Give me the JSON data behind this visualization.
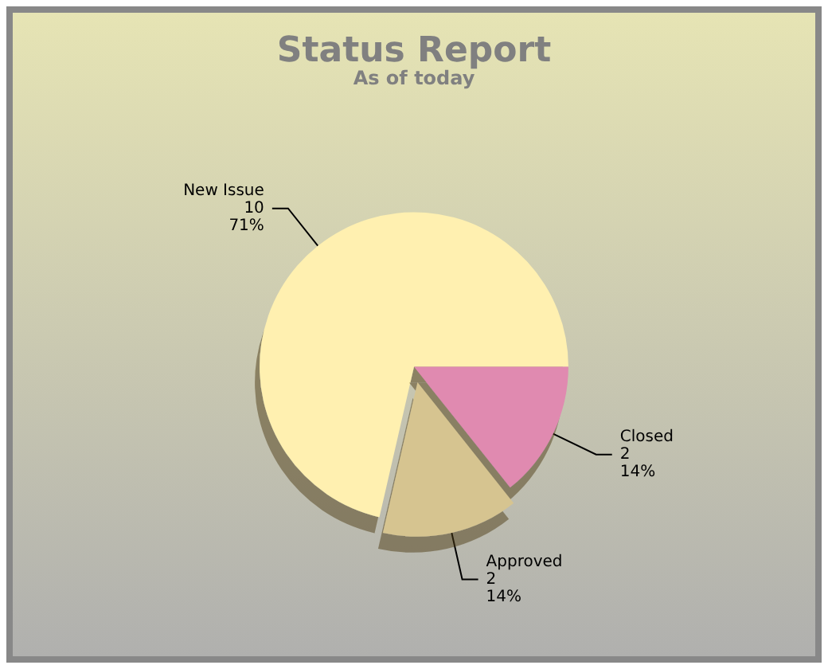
{
  "chart_data": {
    "type": "pie",
    "title": "Status Report",
    "subtitle": "As of today",
    "categories": [
      "New Issue",
      "Closed",
      "Approved"
    ],
    "values": [
      71.4,
      14.3,
      14.3
    ],
    "value_labels": [
      "10\n71%",
      "2\n14%",
      "2\n14%"
    ],
    "colors": [
      "#fff0b0",
      "#e08ab0",
      "#d6c490"
    ],
    "legend": false
  }
}
